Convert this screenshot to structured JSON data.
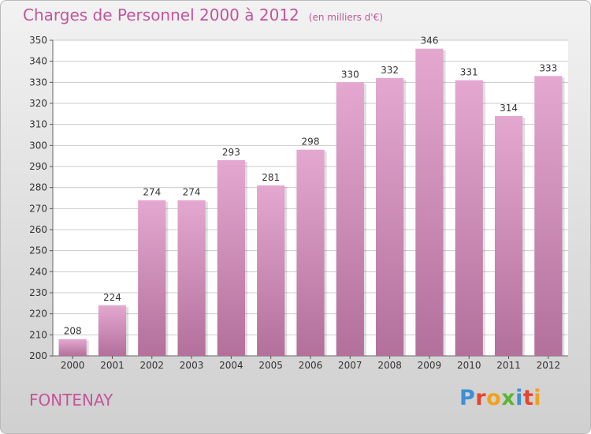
{
  "title": "Charges de Personnel 2000 à 2012",
  "subtitle": "(en milliers d'€)",
  "city": "FONTENAY",
  "logo": {
    "text": "Proxiti",
    "letters": [
      {
        "ch": "P",
        "color": "#3d8fd6"
      },
      {
        "ch": "r",
        "color": "#e5452d"
      },
      {
        "ch": "o",
        "color": "#f2a11b"
      },
      {
        "ch": "x",
        "color": "#5cb531"
      },
      {
        "ch": "i",
        "color": "#3d8fd6"
      },
      {
        "ch": "t",
        "color": "#e5452d"
      },
      {
        "ch": "i",
        "color": "#f2a11b"
      }
    ]
  },
  "colors": {
    "bar_top": "#e4a8d0",
    "bar_bottom": "#b2709b",
    "text": "#c4559b",
    "grid": "#cccccc"
  },
  "chart_data": {
    "type": "bar",
    "categories": [
      "2000",
      "2001",
      "2002",
      "2003",
      "2004",
      "2005",
      "2006",
      "2007",
      "2008",
      "2009",
      "2010",
      "2011",
      "2012"
    ],
    "values": [
      208,
      224,
      274,
      274,
      293,
      281,
      298,
      330,
      332,
      346,
      331,
      314,
      333
    ],
    "title": "Charges de Personnel 2000 à 2012",
    "ylim": [
      200,
      350
    ],
    "yticks": [
      200,
      210,
      220,
      230,
      240,
      250,
      260,
      270,
      280,
      290,
      300,
      310,
      320,
      330,
      340,
      350
    ],
    "grid": true,
    "data_labels": true
  }
}
